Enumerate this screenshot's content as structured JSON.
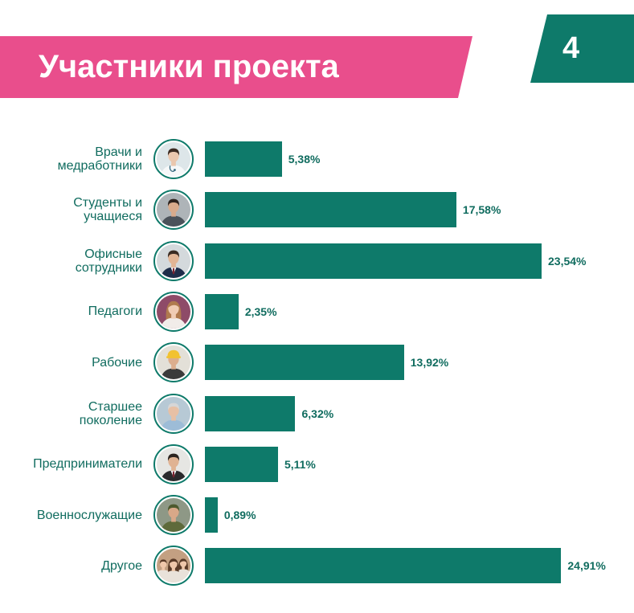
{
  "header": {
    "page_number": "4"
  },
  "colors": {
    "banner": "#e94e8c",
    "accent": "#0e7a6a",
    "label_text": "#106c5f",
    "title_text": "#ffffff"
  },
  "chart_data": {
    "type": "bar",
    "orientation": "horizontal",
    "title": "Участники проекта",
    "categories": [
      "Врачи и\nмедработники",
      "Студенты и\nучащиеся",
      "Офисные\nсотрудники",
      "Педагоги",
      "Рабочие",
      "Старшее\nпоколение",
      "Предприниматели",
      "Военнослужащие",
      "Другое"
    ],
    "values": [
      5.38,
      17.58,
      23.54,
      2.35,
      13.92,
      6.32,
      5.11,
      0.89,
      24.91
    ],
    "labels": [
      "5,38%",
      "17,58%",
      "23,54%",
      "2,35%",
      "13,92%",
      "6,32%",
      "5,11%",
      "0,89%",
      "24,91%"
    ],
    "grid": false
  },
  "avatars": [
    {
      "icon": "doctor-photo-icon",
      "bg": "#dde6e9",
      "skin": "#eac7ae",
      "hair": "#3a2a22",
      "clothes": "#f6f8f9"
    },
    {
      "icon": "student-photo-icon",
      "bg": "#aeb4b8",
      "skin": "#d9ab8c",
      "hair": "#2d231e",
      "clothes": "#4b525a"
    },
    {
      "icon": "office-worker-photo-icon",
      "bg": "#d4d9dc",
      "skin": "#e2b595",
      "hair": "#3a2b22",
      "clothes": "#1e2d4a"
    },
    {
      "icon": "teacher-photo-icon",
      "bg": "#8e4b68",
      "skin": "#f0ccb4",
      "hair": "#b07a4e",
      "clothes": "#f1ece9"
    },
    {
      "icon": "worker-photo-icon",
      "bg": "#e3e0d8",
      "skin": "#dcae8e",
      "hair": "#f2c230",
      "clothes": "#3b3b3b"
    },
    {
      "icon": "senior-photo-icon",
      "bg": "#b7c9d5",
      "skin": "#e7c0a5",
      "hair": "#d6d6d6",
      "clothes": "#9dbcd7"
    },
    {
      "icon": "entrepreneur-photo-icon",
      "bg": "#e6e6e3",
      "skin": "#e0b393",
      "hair": "#2b2420",
      "clothes": "#2a2a2c"
    },
    {
      "icon": "military-photo-icon",
      "bg": "#8e9886",
      "skin": "#d8a888",
      "hair": "#4d5a2e",
      "clothes": "#5e6a3b"
    },
    {
      "icon": "group-photo-icon",
      "bg": "#c3a082",
      "skin": "#efc7aa",
      "hair": "#5a3b28",
      "clothes": "#e9e2da"
    }
  ]
}
